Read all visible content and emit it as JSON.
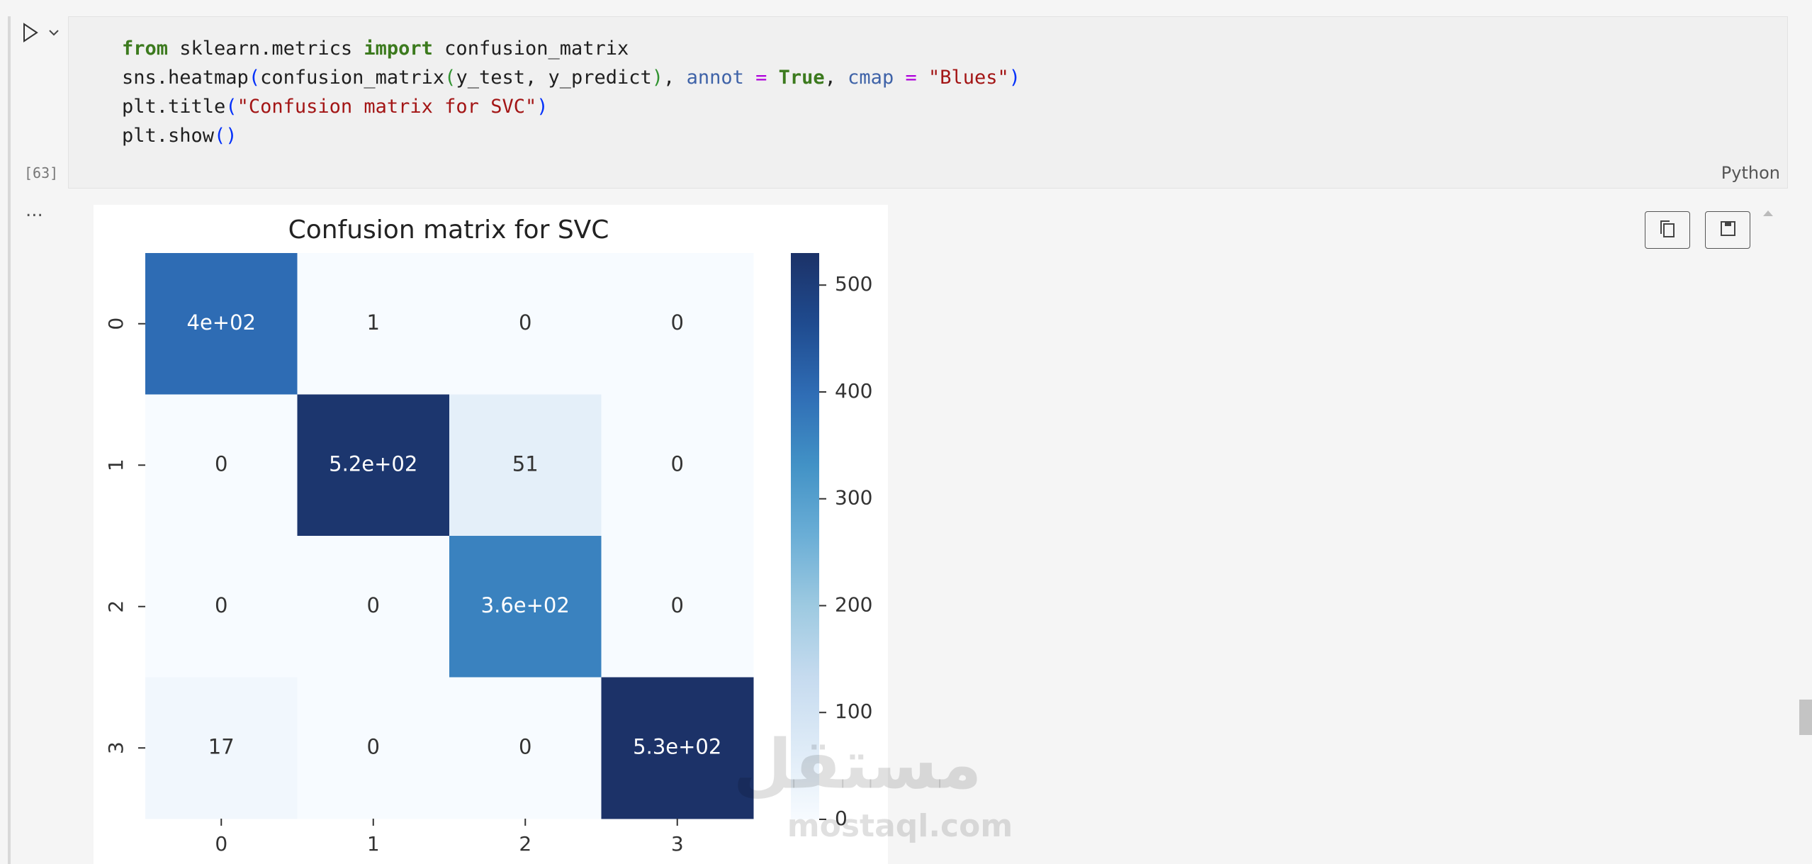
{
  "cell": {
    "execution_count": "[63]",
    "language": "Python",
    "code": [
      [
        {
          "text": "from",
          "color": "#3c7a1e",
          "bold": true
        },
        {
          "text": " sklearn.metrics ",
          "color": "#1f1f1f"
        },
        {
          "text": "import",
          "color": "#3c7a1e",
          "bold": true
        },
        {
          "text": " confusion_matrix",
          "color": "#1f1f1f"
        }
      ],
      [
        {
          "text": "sns.heatmap",
          "color": "#1f1f1f"
        },
        {
          "text": "(",
          "color": "#0431fa"
        },
        {
          "text": "confusion_matrix",
          "color": "#1f1f1f"
        },
        {
          "text": "(",
          "color": "#319331"
        },
        {
          "text": "y_test, y_predict",
          "color": "#1f1f1f"
        },
        {
          "text": ")",
          "color": "#319331"
        },
        {
          "text": ", ",
          "color": "#1f1f1f"
        },
        {
          "text": "annot",
          "color": "#3f63a8"
        },
        {
          "text": " = ",
          "color": "#af00db"
        },
        {
          "text": "True",
          "color": "#3c7a1e",
          "bold": true
        },
        {
          "text": ", ",
          "color": "#1f1f1f"
        },
        {
          "text": "cmap",
          "color": "#3f63a8"
        },
        {
          "text": " = ",
          "color": "#af00db"
        },
        {
          "text": "\"Blues\"",
          "color": "#a31515"
        },
        {
          "text": ")",
          "color": "#0431fa"
        }
      ],
      [
        {
          "text": "plt.title",
          "color": "#1f1f1f"
        },
        {
          "text": "(",
          "color": "#0431fa"
        },
        {
          "text": "\"Confusion matrix for SVC\"",
          "color": "#a31515"
        },
        {
          "text": ")",
          "color": "#0431fa"
        }
      ],
      [
        {
          "text": "plt.show",
          "color": "#1f1f1f"
        },
        {
          "text": "()",
          "color": "#0431fa"
        }
      ]
    ]
  },
  "output": {
    "collapse": "..."
  },
  "watermark": {
    "arabic": "مستقل",
    "latin": "mostaql.com"
  },
  "chart_data": {
    "type": "heatmap",
    "title": "Confusion matrix for SVC",
    "x": [
      "0",
      "1",
      "2",
      "3"
    ],
    "y": [
      "0",
      "1",
      "2",
      "3"
    ],
    "values": [
      [
        400,
        1,
        0,
        0
      ],
      [
        0,
        520,
        51,
        0
      ],
      [
        0,
        0,
        360,
        0
      ],
      [
        17,
        0,
        0,
        530
      ]
    ],
    "value_labels": [
      [
        "4e+02",
        "1",
        "0",
        "0"
      ],
      [
        "0",
        "5.2e+02",
        "51",
        "0"
      ],
      [
        "0",
        "0",
        "3.6e+02",
        "0"
      ],
      [
        "17",
        "0",
        "0",
        "5.3e+02"
      ]
    ],
    "clim": [
      0,
      530
    ],
    "cticks": [
      0,
      100,
      200,
      300,
      400,
      500
    ],
    "colorscale": [
      "#f7fbff",
      "#deebf7",
      "#c6dbef",
      "#9ecae1",
      "#6baed6",
      "#4292c6",
      "#2f6db5",
      "#1f4b8f",
      "#1c3268"
    ]
  }
}
